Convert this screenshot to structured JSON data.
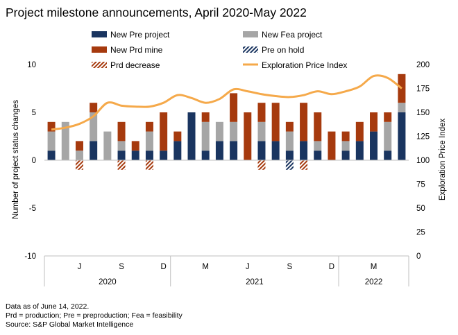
{
  "title": "Project milestone announcements, April 2020-May 2022",
  "footnotes": [
    "Data as of June 14, 2022.",
    "Prd = production; Pre = preproduction; Fea = feasibility",
    "Source: S&P Global Market Intelligence"
  ],
  "colors": {
    "pre": "#1a3560",
    "fea": "#a6a6a6",
    "prd": "#a63a0e",
    "pre_hold": "#1a3560",
    "prd_decrease": "#a63a0e",
    "line": "#f5a94a"
  },
  "chart_data": {
    "type": "bar",
    "title": "Project milestone announcements, April 2020-May 2022",
    "ylabel": "Number of project status changes",
    "y2label": "Exploration Price Index",
    "ylim": [
      -10,
      10
    ],
    "y_ticks": [
      "10",
      "5",
      "0",
      "-5",
      "-10"
    ],
    "y2lim": [
      0,
      200
    ],
    "y2_ticks": [
      "200",
      "175",
      "150",
      "125",
      "100",
      "75",
      "50",
      "25",
      "0"
    ],
    "month_labels": [
      "J",
      "S",
      "D",
      "M",
      "J",
      "S",
      "D",
      "M"
    ],
    "month_label_index": [
      2,
      5,
      8,
      11,
      14,
      17,
      20,
      23
    ],
    "year_labels": [
      "2020",
      "2021",
      "2022"
    ],
    "categories": [
      "Apr 2020",
      "May 2020",
      "Jun 2020",
      "Jul 2020",
      "Aug 2020",
      "Sep 2020",
      "Oct 2020",
      "Nov 2020",
      "Dec 2020",
      "Jan 2021",
      "Feb 2021",
      "Mar 2021",
      "Apr 2021",
      "May 2021",
      "Jun 2021",
      "Jul 2021",
      "Aug 2021",
      "Sep 2021",
      "Oct 2021",
      "Nov 2021",
      "Dec 2021",
      "Jan 2022",
      "Feb 2022",
      "Mar 2022",
      "Apr 2022",
      "May 2022"
    ],
    "legend": [
      "New Pre project",
      "New Fea project",
      "New Prd mine",
      "Pre on hold",
      "Prd decrease",
      "Exploration Price Index"
    ],
    "series": [
      {
        "name": "New Pre project",
        "values": [
          1,
          0,
          0,
          2,
          0,
          1,
          1,
          1,
          1,
          2,
          5,
          1,
          2,
          2,
          0,
          2,
          2,
          1,
          2,
          1,
          0,
          1,
          2,
          3,
          1,
          5
        ]
      },
      {
        "name": "New Fea project",
        "values": [
          2,
          4,
          1,
          3,
          3,
          1,
          0,
          2,
          0,
          0,
          0,
          3,
          2,
          2,
          0,
          2,
          0,
          2,
          0,
          1,
          0,
          1,
          0,
          0,
          3,
          1
        ]
      },
      {
        "name": "New Prd mine",
        "values": [
          1,
          0,
          1,
          1,
          0,
          2,
          1,
          1,
          4,
          1,
          0,
          1,
          0,
          3,
          5,
          2,
          4,
          1,
          4,
          3,
          3,
          1,
          2,
          2,
          1,
          3
        ]
      },
      {
        "name": "Pre on hold",
        "values": [
          0,
          0,
          0,
          0,
          0,
          0,
          0,
          0,
          0,
          0,
          0,
          0,
          0,
          0,
          0,
          0,
          0,
          -1,
          0,
          0,
          0,
          0,
          0,
          0,
          0,
          0
        ]
      },
      {
        "name": "Prd decrease",
        "values": [
          0,
          0,
          -1,
          0,
          0,
          -1,
          0,
          -1,
          0,
          0,
          0,
          0,
          0,
          0,
          0,
          -1,
          0,
          0,
          -1,
          0,
          0,
          0,
          0,
          0,
          0,
          0
        ]
      },
      {
        "name": "Exploration Price Index",
        "axis": "right",
        "values": [
          132,
          134,
          138,
          146,
          160,
          157,
          156,
          156,
          160,
          168,
          165,
          160,
          164,
          174,
          172,
          169,
          167,
          166,
          168,
          172,
          169,
          172,
          177,
          188,
          186,
          175
        ]
      }
    ]
  }
}
